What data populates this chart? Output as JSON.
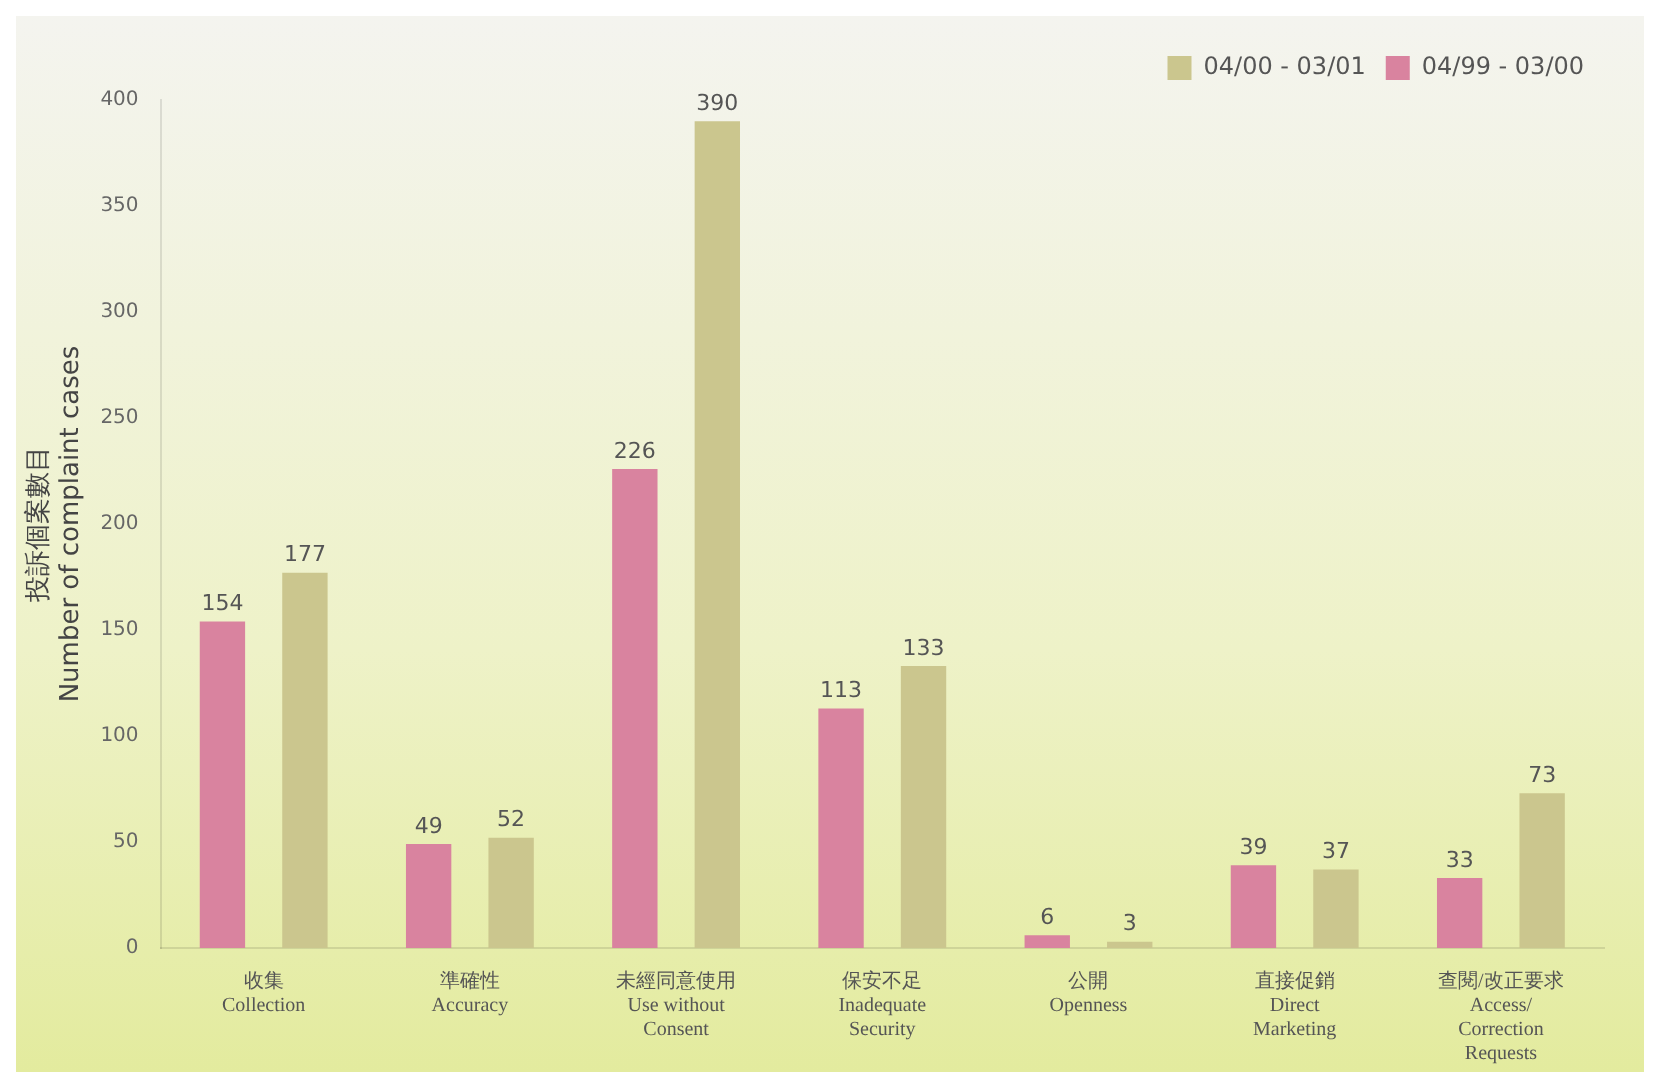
{
  "chart_data": {
    "type": "bar",
    "ylabel": "投訴個案數目\nNumber of complaint cases",
    "categories": [
      "收集\nCollection",
      "準確性\nAccuracy",
      "未經同意使用\nUse without\nConsent",
      "保安不足\nInadequate\nSecurity",
      "公開\nOpenness",
      "直接促銷\nDirect\nMarketing",
      "查閱/改正要求\nAccess/\nCorrection\nRequests"
    ],
    "series": [
      {
        "name": "04/99 - 03/00",
        "color": "#d9839f",
        "values": [
          154,
          49,
          226,
          113,
          6,
          39,
          33
        ]
      },
      {
        "name": "04/00 - 03/01",
        "color": "#cbc68e",
        "values": [
          177,
          52,
          390,
          133,
          3,
          37,
          73
        ]
      }
    ],
    "ylim": [
      0,
      400
    ],
    "yticks": [
      0,
      50,
      100,
      150,
      200,
      250,
      300,
      350,
      400
    ],
    "grid": false,
    "legend": "top right",
    "data_labels": true
  }
}
